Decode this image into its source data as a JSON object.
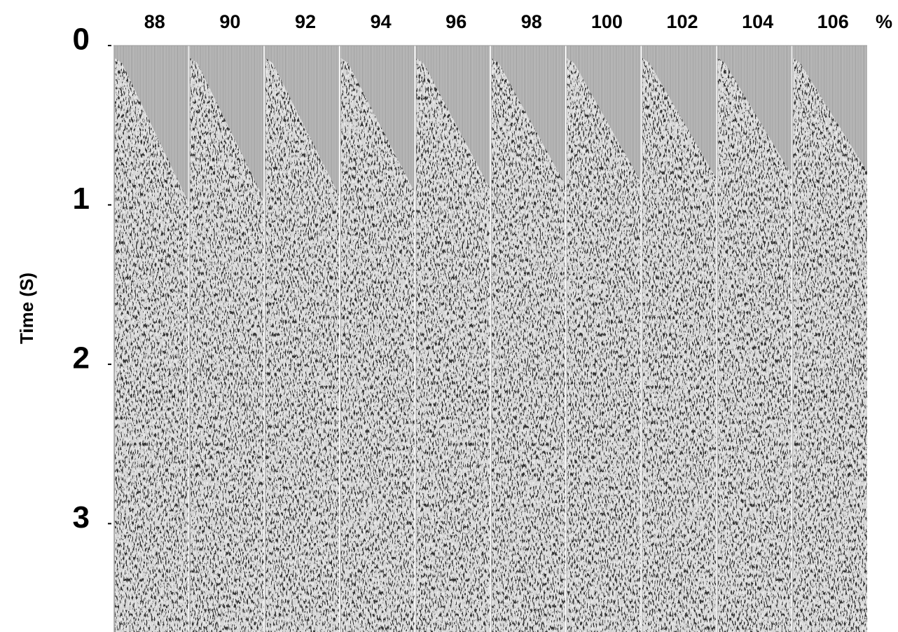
{
  "panels": {
    "labels": [
      "88",
      "90",
      "92",
      "94",
      "96",
      "98",
      "100",
      "102",
      "104",
      "106"
    ],
    "unit": "%"
  },
  "time_axis": {
    "label": "Time (S)",
    "ticks": [
      0,
      1,
      2,
      3
    ],
    "lim": [
      0,
      3.68
    ]
  }
}
